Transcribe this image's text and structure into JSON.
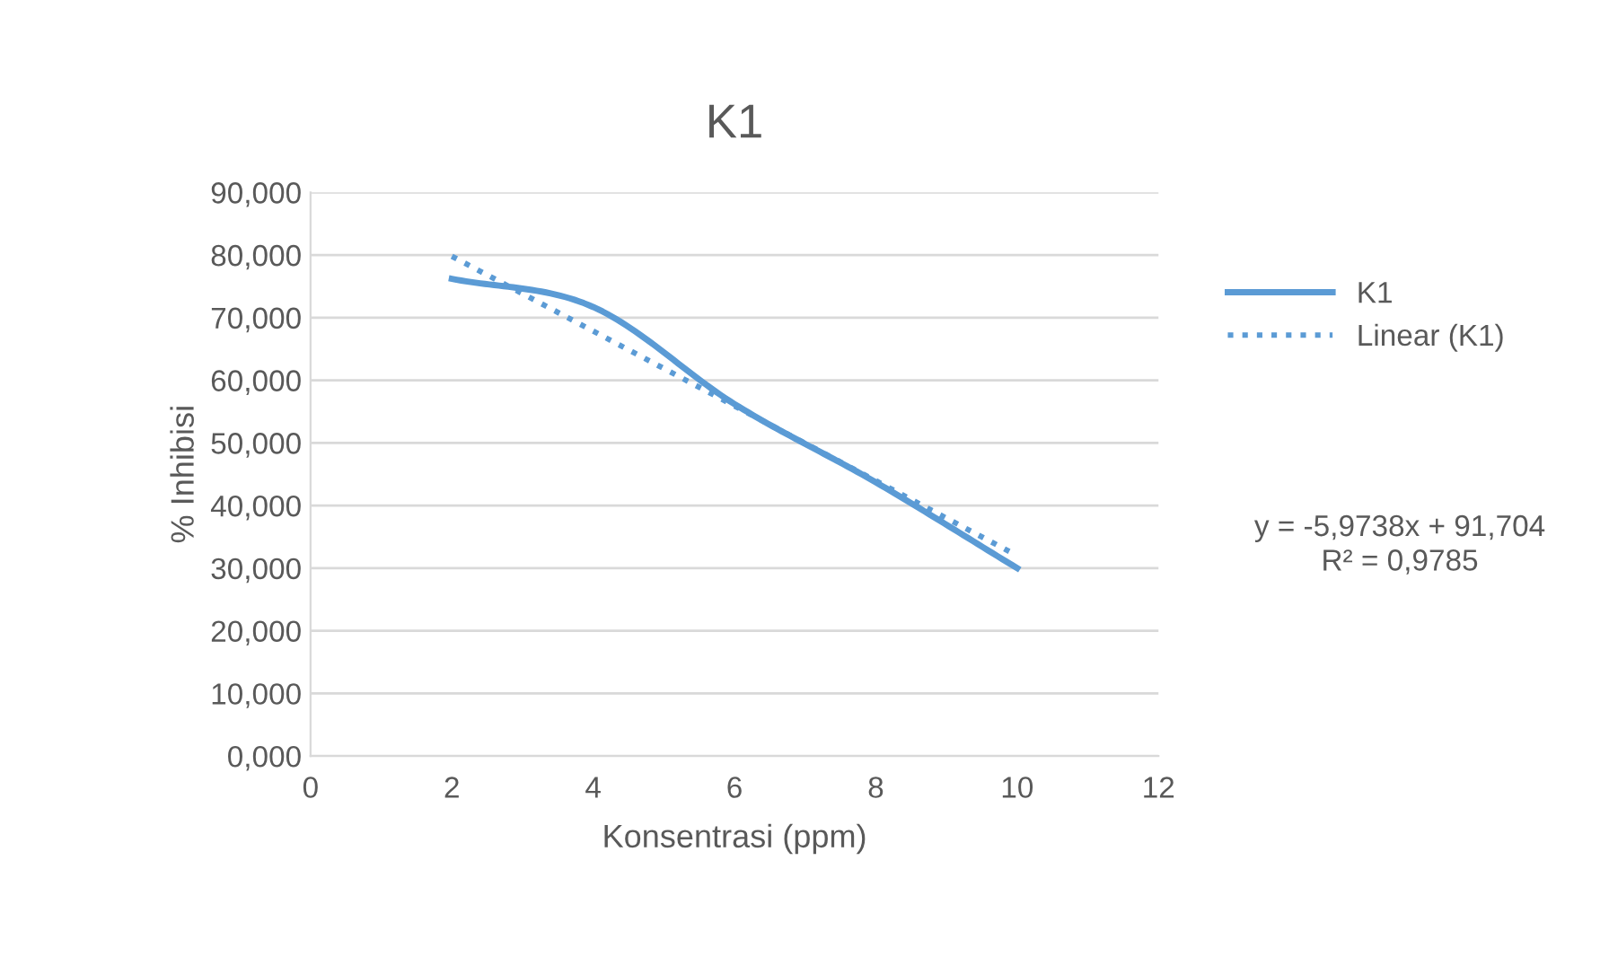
{
  "chart_data": {
    "type": "line",
    "title": "K1",
    "xlabel": "Konsentrasi (ppm)",
    "ylabel": "% Inhibisi",
    "series": [
      {
        "name": "K1",
        "color": "#5b9bd5",
        "x": [
          2,
          4,
          6,
          8,
          10
        ],
        "values": [
          76.2,
          71.7,
          56.2,
          43.7,
          30.0
        ],
        "line_style": "solid"
      },
      {
        "name": "Linear (K1)",
        "color": "#5b9bd5",
        "x": [
          2,
          10
        ],
        "values": [
          79.8,
          32.0
        ],
        "line_style": "dotted"
      }
    ],
    "xlim": [
      0,
      12
    ],
    "xticks": [
      0,
      2,
      4,
      6,
      8,
      10,
      12
    ],
    "ylim": [
      0,
      90
    ],
    "yticks": [
      {
        "value": 0,
        "label": "0,000"
      },
      {
        "value": 10,
        "label": "10,000"
      },
      {
        "value": 20,
        "label": "20,000"
      },
      {
        "value": 30,
        "label": "30,000"
      },
      {
        "value": 40,
        "label": "40,000"
      },
      {
        "value": 50,
        "label": "50,000"
      },
      {
        "value": 60,
        "label": "60,000"
      },
      {
        "value": 70,
        "label": "70,000"
      },
      {
        "value": 80,
        "label": "80,000"
      },
      {
        "value": 90,
        "label": "90,000"
      }
    ],
    "grid": "y",
    "legend": "right",
    "marker": "none",
    "annotations": [
      "y = -5,9738x + 91,704\nR² = 0,9785"
    ]
  }
}
